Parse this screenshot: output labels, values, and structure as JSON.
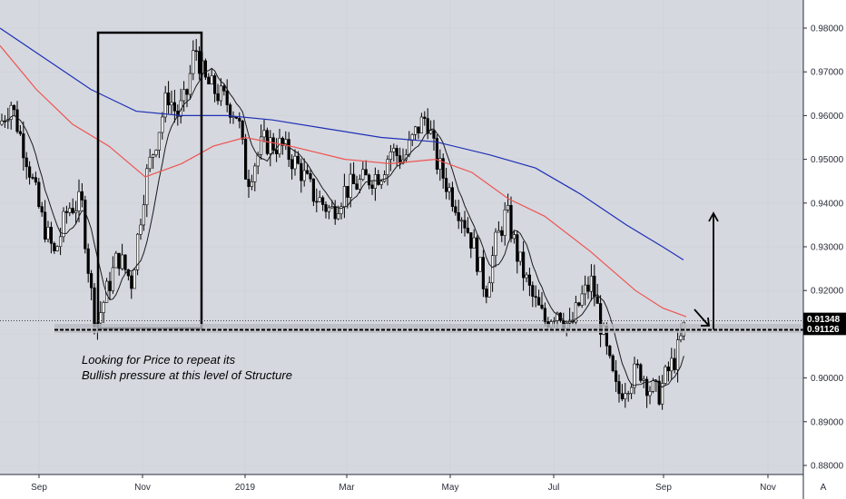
{
  "chart_data": {
    "type": "candlestick",
    "y_axis": {
      "ticks": [
        "0.98000",
        "0.97000",
        "0.96000",
        "0.95000",
        "0.94000",
        "0.93000",
        "0.92000",
        "0.90000",
        "0.89000",
        "0.88000"
      ],
      "ylim": [
        0.8775,
        0.9835
      ],
      "position": "right"
    },
    "x_axis": {
      "ticks": [
        "Sep",
        "Nov",
        "2019",
        "Mar",
        "May",
        "Jul",
        "Sep",
        "Nov"
      ]
    },
    "price_labels": [
      {
        "text": "0.91348",
        "value": 0.91348
      },
      {
        "text": "0.91126",
        "value": 0.91126
      }
    ],
    "annotation": [
      "Looking for Price to repeat its",
      "Bullish pressure at this level of Structure"
    ],
    "corner_label": "A",
    "colors": {
      "background": "#d1d4dc",
      "plot_background": "#d5d8df",
      "candles": "#000000",
      "ma_fast": "#1a1a1a",
      "ma_red": "#ef5350",
      "ma_blue": "#1e2fb5",
      "price_label_bg": "#000000"
    }
  }
}
